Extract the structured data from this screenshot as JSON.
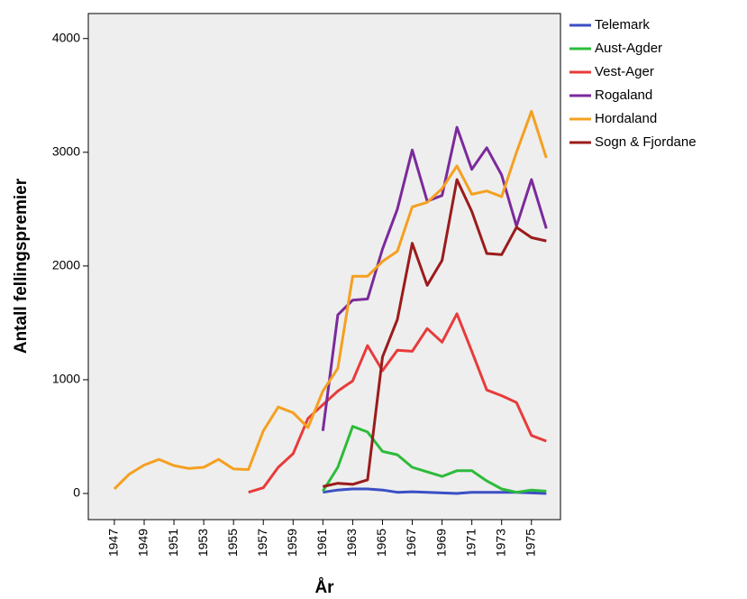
{
  "chart_data": {
    "type": "line",
    "x_label": "År",
    "y_label": "Antall fellingspremier",
    "x": [
      1947,
      1948,
      1949,
      1950,
      1951,
      1952,
      1953,
      1954,
      1955,
      1956,
      1957,
      1958,
      1959,
      1960,
      1961,
      1962,
      1963,
      1964,
      1965,
      1966,
      1967,
      1968,
      1969,
      1970,
      1971,
      1972,
      1973,
      1974,
      1975,
      1976
    ],
    "xlim": [
      1945.25,
      1976.95
    ],
    "xticks": [
      1947,
      1949,
      1951,
      1953,
      1955,
      1957,
      1959,
      1961,
      1963,
      1965,
      1967,
      1969,
      1971,
      1973,
      1975
    ],
    "ylim": [
      -230,
      4220
    ],
    "yticks": [
      0,
      1000,
      2000,
      3000,
      4000
    ],
    "legend": "right",
    "series": [
      {
        "name": "Telemark",
        "color": "#3b4fc4",
        "values": [
          null,
          null,
          null,
          null,
          null,
          null,
          null,
          null,
          null,
          null,
          null,
          null,
          null,
          null,
          10,
          30,
          40,
          40,
          30,
          10,
          15,
          10,
          5,
          0,
          10,
          10,
          10,
          10,
          5,
          0
        ]
      },
      {
        "name": "Aust-Agder",
        "color": "#2dbb3a",
        "values": [
          null,
          null,
          null,
          null,
          null,
          null,
          null,
          null,
          null,
          null,
          null,
          null,
          null,
          null,
          20,
          230,
          590,
          540,
          370,
          340,
          230,
          190,
          150,
          200,
          200,
          110,
          40,
          10,
          30,
          20
        ]
      },
      {
        "name": "Vest-Ager",
        "color": "#e83b3b",
        "values": [
          null,
          null,
          null,
          null,
          null,
          null,
          null,
          null,
          null,
          10,
          50,
          230,
          350,
          660,
          780,
          900,
          990,
          1300,
          1080,
          1260,
          1250,
          1450,
          1330,
          1580,
          1250,
          910,
          860,
          800,
          510,
          460
        ]
      },
      {
        "name": "Rogaland",
        "color": "#7b2a9b",
        "values": [
          null,
          null,
          null,
          null,
          null,
          null,
          null,
          null,
          null,
          null,
          null,
          null,
          null,
          null,
          550,
          1570,
          1700,
          1710,
          2150,
          2500,
          3020,
          2570,
          2620,
          3220,
          2850,
          3040,
          2800,
          2350,
          2760,
          2330
        ]
      },
      {
        "name": "Hordaland",
        "color": "#f5a020",
        "values": [
          40,
          170,
          250,
          300,
          245,
          220,
          230,
          300,
          215,
          210,
          550,
          760,
          710,
          580,
          900,
          1100,
          1910,
          1910,
          2040,
          2130,
          2520,
          2560,
          2680,
          2880,
          2630,
          2660,
          2610,
          3000,
          3360,
          2950
        ]
      },
      {
        "name": "Sogn & Fjordane",
        "color": "#9b1b1b",
        "values": [
          null,
          null,
          null,
          null,
          null,
          null,
          null,
          null,
          null,
          null,
          null,
          null,
          null,
          null,
          60,
          90,
          80,
          120,
          1200,
          1530,
          2200,
          1830,
          2050,
          2760,
          2480,
          2110,
          2100,
          2340,
          2250,
          2220
        ]
      }
    ]
  }
}
